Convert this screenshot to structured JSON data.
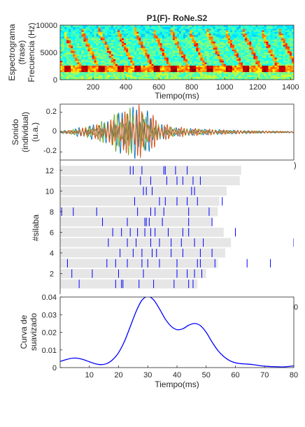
{
  "chart_data": [
    {
      "type": "heatmap",
      "panel": "spectrogram",
      "title": "P1(F)- RoNe.S2",
      "ylabel_lines": [
        "Espectrograma",
        "(frase)",
        "Frecuencia (Hz)"
      ],
      "xlabel": "Tiempo(ms)",
      "xlim": [
        0,
        1420
      ],
      "ylim": [
        0,
        10000
      ],
      "xticks": [
        200,
        400,
        600,
        800,
        1000,
        1200,
        1400
      ],
      "yticks": [
        0,
        5000,
        10000
      ],
      "colormap": "jet",
      "dominant_band_hz": [
        1500,
        2600
      ],
      "repeating_chirp_count": 13
    },
    {
      "type": "line",
      "panel": "waveform",
      "ylabel_lines": [
        "Sonido",
        "(individual)",
        "(u.a.)"
      ],
      "xlim": [
        0,
        80
      ],
      "ylim": [
        -0.28,
        0.28
      ],
      "yticks": [
        -0.2,
        0,
        0.2
      ],
      "series": [
        {
          "color": "#0072BD",
          "envelope": [
            [
              0,
              0.01
            ],
            [
              4,
              0.03
            ],
            [
              8,
              0.06
            ],
            [
              12,
              0.08
            ],
            [
              16,
              0.11
            ],
            [
              19,
              0.19
            ],
            [
              22,
              0.24
            ],
            [
              25,
              0.27
            ],
            [
              28,
              0.28
            ],
            [
              30,
              0.22
            ],
            [
              33,
              0.1
            ],
            [
              37,
              0.05
            ],
            [
              42,
              0.04
            ],
            [
              50,
              0.03
            ],
            [
              60,
              0.02
            ],
            [
              70,
              0.012
            ],
            [
              80,
              0.008
            ]
          ]
        },
        {
          "color": "#77AC30",
          "envelope": [
            [
              0,
              0.01
            ],
            [
              5,
              0.03
            ],
            [
              10,
              0.06
            ],
            [
              15,
              0.12
            ],
            [
              19,
              0.2
            ],
            [
              23,
              0.25
            ],
            [
              26,
              0.24
            ],
            [
              29,
              0.18
            ],
            [
              33,
              0.08
            ],
            [
              40,
              0.04
            ],
            [
              55,
              0.02
            ],
            [
              80,
              0.005
            ]
          ]
        },
        {
          "color": "#D95319",
          "envelope": [
            [
              0,
              0.01
            ],
            [
              4,
              0.02
            ],
            [
              9,
              0.05
            ],
            [
              13,
              0.08
            ],
            [
              17,
              0.12
            ],
            [
              20,
              0.18
            ],
            [
              24,
              0.24
            ],
            [
              27,
              0.28
            ],
            [
              30,
              0.22
            ],
            [
              34,
              0.12
            ],
            [
              38,
              0.06
            ],
            [
              45,
              0.04
            ],
            [
              55,
              0.025
            ],
            [
              65,
              0.015
            ],
            [
              80,
              0.008
            ]
          ]
        }
      ]
    },
    {
      "type": "scatter",
      "panel": "raster",
      "ylabel": "#silaba",
      "xlim": [
        0,
        80
      ],
      "ylim": [
        0,
        13
      ],
      "yticks": [
        2,
        4,
        6,
        8,
        10,
        12
      ],
      "bar_color": "#e6e6e6",
      "tick_color": "#0000ff",
      "trials": [
        {
          "n": 1,
          "bar_end": 47,
          "spikes": [
            6.5,
            19,
            21,
            21.5,
            27,
            32,
            39,
            44,
            45.5
          ]
        },
        {
          "n": 2,
          "bar_end": 50,
          "spikes": [
            4,
            11,
            20,
            28.5,
            40,
            43.5,
            46,
            48.5
          ]
        },
        {
          "n": 3,
          "bar_end": 54,
          "spikes": [
            2.5,
            16,
            19,
            23,
            28,
            30,
            34,
            40,
            47,
            48,
            53,
            64,
            72
          ]
        },
        {
          "n": 4,
          "bar_end": 56.5,
          "spikes": [
            20.5,
            25,
            28,
            31.5,
            33,
            38,
            42,
            48,
            52
          ]
        },
        {
          "n": 5,
          "bar_end": 58.5,
          "spikes": [
            16.5,
            23,
            26,
            31,
            34,
            38,
            41.5,
            46,
            49,
            80
          ]
        },
        {
          "n": 6,
          "bar_end": 56,
          "spikes": [
            18,
            21,
            24,
            26.5,
            29,
            31,
            32.5,
            37,
            42,
            44,
            60
          ]
        },
        {
          "n": 7,
          "bar_end": 52,
          "spikes": [
            14.5,
            23,
            29,
            29.5,
            30.5,
            35,
            44,
            52
          ]
        },
        {
          "n": 8,
          "bar_end": 54,
          "spikes": [
            0.5,
            4.5,
            12.5,
            26.5,
            31,
            32.5,
            35.5,
            44,
            51
          ]
        },
        {
          "n": 9,
          "bar_end": 54.5,
          "spikes": [
            25.5,
            34,
            36,
            40,
            43.5,
            47,
            55.5
          ]
        },
        {
          "n": 10,
          "bar_end": 57,
          "spikes": [
            28.5,
            29.5,
            31.5,
            45,
            46
          ]
        },
        {
          "n": 11,
          "bar_end": 61.5,
          "spikes": [
            27.5,
            31,
            36.5,
            40,
            42,
            45.5,
            48
          ]
        },
        {
          "n": 12,
          "bar_end": 62,
          "spikes": [
            24,
            25,
            28,
            35.5,
            36,
            39.5,
            43.5
          ]
        }
      ]
    },
    {
      "type": "line",
      "panel": "smoothing",
      "ylabel_lines": [
        "Curva de",
        "suavizado"
      ],
      "xlabel": "Tiempo(ms)",
      "xlim": [
        0,
        80
      ],
      "ylim": [
        0,
        0.04
      ],
      "xticks": [
        10,
        20,
        30,
        40,
        50,
        60,
        70,
        80
      ],
      "yticks": [
        0,
        0.01,
        0.02,
        0.03,
        0.04
      ],
      "series": [
        {
          "color": "#0000ff",
          "x": [
            0,
            2,
            4,
            6,
            8,
            10,
            12,
            14,
            16,
            18,
            20,
            22,
            24,
            26,
            28,
            30,
            32,
            34,
            36,
            38,
            40,
            42,
            44,
            46,
            48,
            50,
            52,
            54,
            56,
            58,
            60,
            62,
            64,
            66,
            68,
            70,
            72,
            74,
            76,
            78,
            80
          ],
          "y": [
            0.0035,
            0.0045,
            0.0053,
            0.0053,
            0.0045,
            0.0033,
            0.0022,
            0.0017,
            0.0023,
            0.0045,
            0.0085,
            0.0148,
            0.0232,
            0.0318,
            0.0382,
            0.0403,
            0.0384,
            0.0333,
            0.0275,
            0.0234,
            0.0215,
            0.022,
            0.024,
            0.025,
            0.0238,
            0.02,
            0.0145,
            0.0097,
            0.0063,
            0.004,
            0.0027,
            0.0022,
            0.002,
            0.0017,
            0.0012,
            0.0008,
            0.0006,
            0.0005,
            0.0004,
            0.0006,
            0.001
          ]
        }
      ]
    }
  ],
  "sp": {
    "title": "P1(F)- RoNe.S2",
    "ylab1": "Espectrograma",
    "ylab2": "(frase)",
    "ylab3": "Frecuencia (Hz)",
    "xlabel": "Tiempo(ms)",
    "yt0": "0",
    "yt1": "5000",
    "yt2": "10000",
    "xt": [
      "200",
      "400",
      "600",
      "800",
      "1000",
      "1200",
      "1400"
    ]
  },
  "wf": {
    "ylab1": "Sonido",
    "ylab2": "(individual)",
    "ylab3": "(u.a.)",
    "yt_pos": "0.2",
    "yt_zero": "0",
    "yt_neg": "-0.2",
    "clip_right": ")"
  },
  "rs": {
    "ylabel": "#silaba",
    "yt": [
      "2",
      "4",
      "6",
      "8",
      "10",
      "12"
    ],
    "clip_right": "0"
  },
  "sm": {
    "ylab1": "Curva de",
    "ylab2": "suavizado",
    "xlabel": "Tiempo(ms)",
    "yt": [
      "0",
      "0.01",
      "0.02",
      "0.03",
      "0.04"
    ],
    "xt": [
      "10",
      "20",
      "30",
      "40",
      "50",
      "60",
      "70",
      "80"
    ]
  }
}
